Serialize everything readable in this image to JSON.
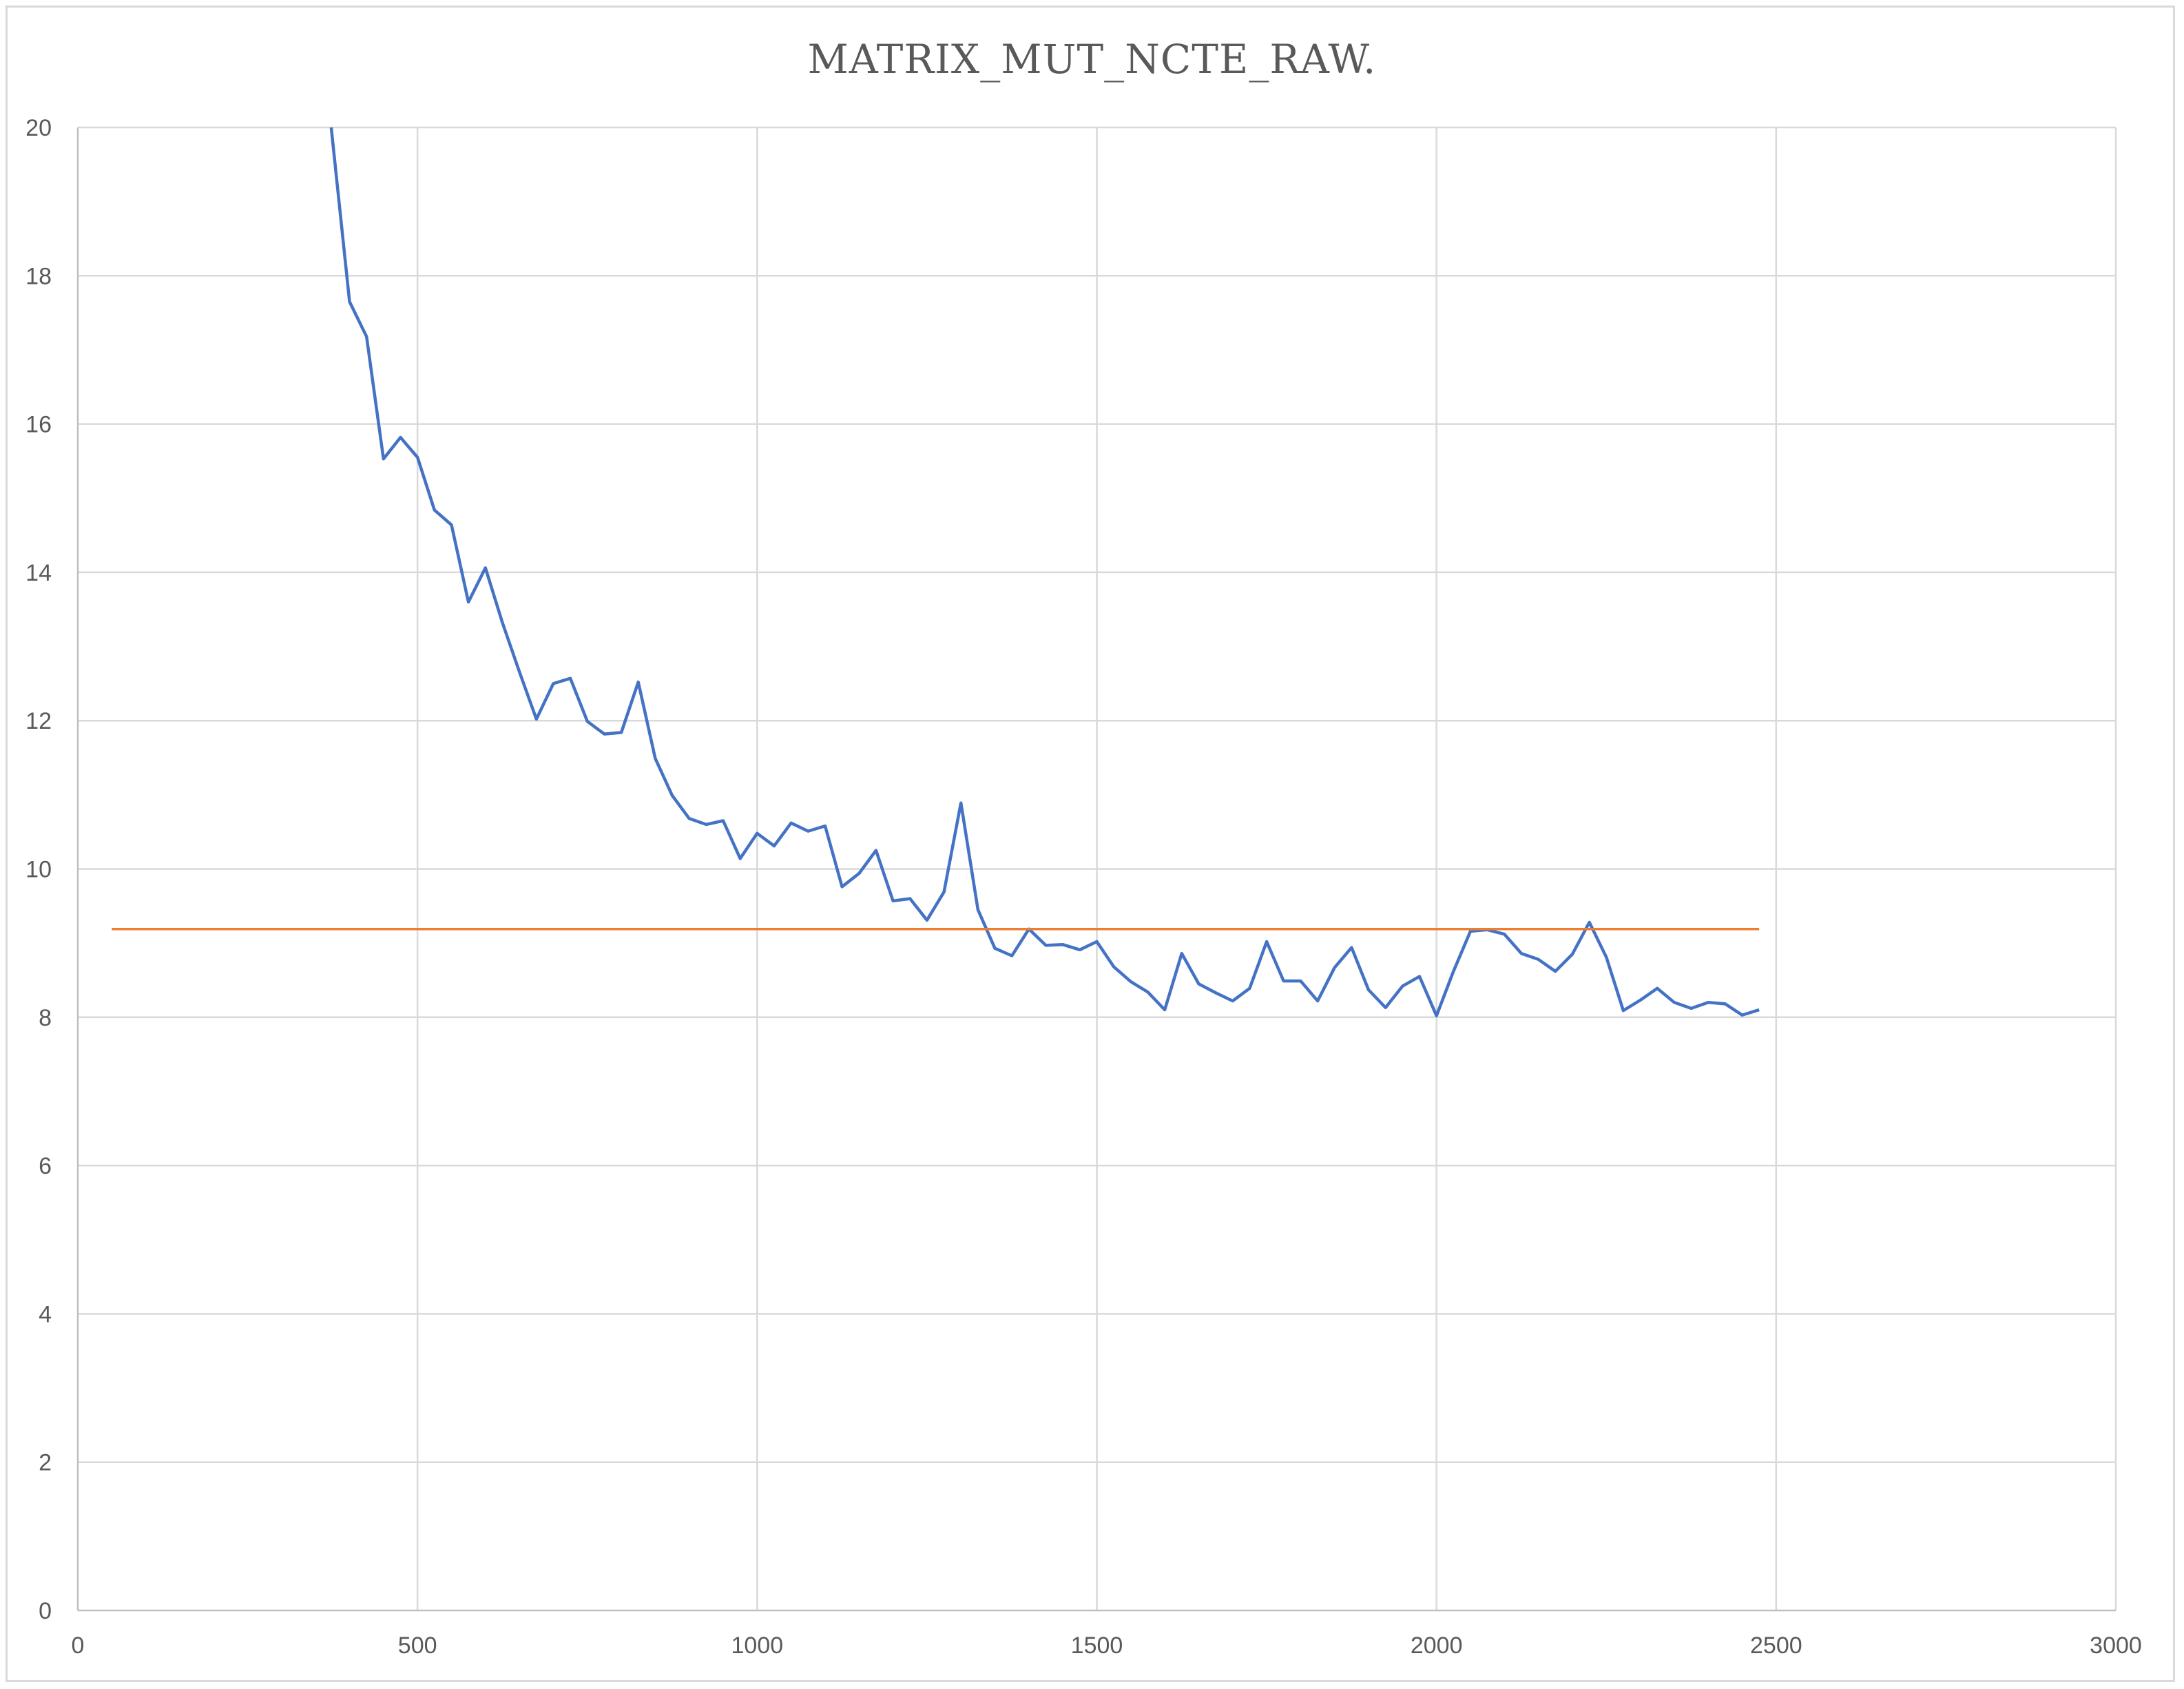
{
  "chart_data": {
    "type": "line",
    "title": "MATRIX_MUT_NCTE_RAW.",
    "xlabel": "",
    "ylabel": "",
    "xlim": [
      0,
      3000
    ],
    "ylim": [
      0,
      20
    ],
    "x_ticks": [
      0,
      500,
      1000,
      1500,
      2000,
      2500,
      3000
    ],
    "y_ticks": [
      0,
      2,
      4,
      6,
      8,
      10,
      12,
      14,
      16,
      18,
      20
    ],
    "grid": true,
    "legend": "none",
    "series": [
      {
        "color": "#4472c4",
        "x": [
          373,
          400,
          425,
          450,
          475,
          500,
          525,
          550,
          575,
          600,
          625,
          650,
          675,
          700,
          725,
          750,
          775,
          800,
          825,
          850,
          875,
          900,
          925,
          950,
          975,
          1000,
          1025,
          1050,
          1075,
          1100,
          1125,
          1150,
          1175,
          1200,
          1225,
          1250,
          1275,
          1300,
          1325,
          1350,
          1375,
          1400,
          1425,
          1450,
          1475,
          1500,
          1525,
          1550,
          1575,
          1600,
          1625,
          1650,
          1675,
          1700,
          1725,
          1750,
          1775,
          1800,
          1825,
          1850,
          1875,
          1900,
          1925,
          1950,
          1975,
          2000,
          2025,
          2050,
          2075,
          2100,
          2125,
          2150,
          2175,
          2200,
          2225,
          2250,
          2275,
          2300,
          2325,
          2350,
          2375,
          2400,
          2425,
          2450,
          2475
        ],
        "y": [
          20.0,
          17.65,
          17.18,
          15.53,
          15.82,
          15.55,
          14.84,
          14.64,
          13.6,
          14.06,
          13.32,
          12.66,
          12.02,
          12.5,
          12.57,
          11.99,
          11.82,
          11.84,
          12.52,
          11.49,
          10.99,
          10.68,
          10.6,
          10.65,
          10.14,
          10.48,
          10.31,
          10.62,
          10.51,
          10.58,
          9.76,
          9.94,
          10.25,
          9.57,
          9.6,
          9.31,
          9.69,
          10.89,
          9.45,
          8.93,
          8.83,
          9.19,
          8.97,
          8.98,
          8.91,
          9.02,
          8.68,
          8.48,
          8.34,
          8.1,
          8.86,
          8.45,
          8.33,
          8.22,
          8.39,
          9.02,
          8.49,
          8.49,
          8.22,
          8.67,
          8.94,
          8.37,
          8.13,
          8.42,
          8.55,
          8.02,
          8.62,
          9.16,
          9.18,
          9.12,
          8.86,
          8.78,
          8.62,
          8.85,
          9.28,
          8.81,
          8.09,
          8.23,
          8.39,
          8.2,
          8.12,
          8.2,
          8.18,
          8.03,
          8.1
        ]
      },
      {
        "color": "#ed7d31",
        "x": [
          50,
          2475
        ],
        "y": [
          9.19,
          9.19
        ]
      }
    ]
  }
}
